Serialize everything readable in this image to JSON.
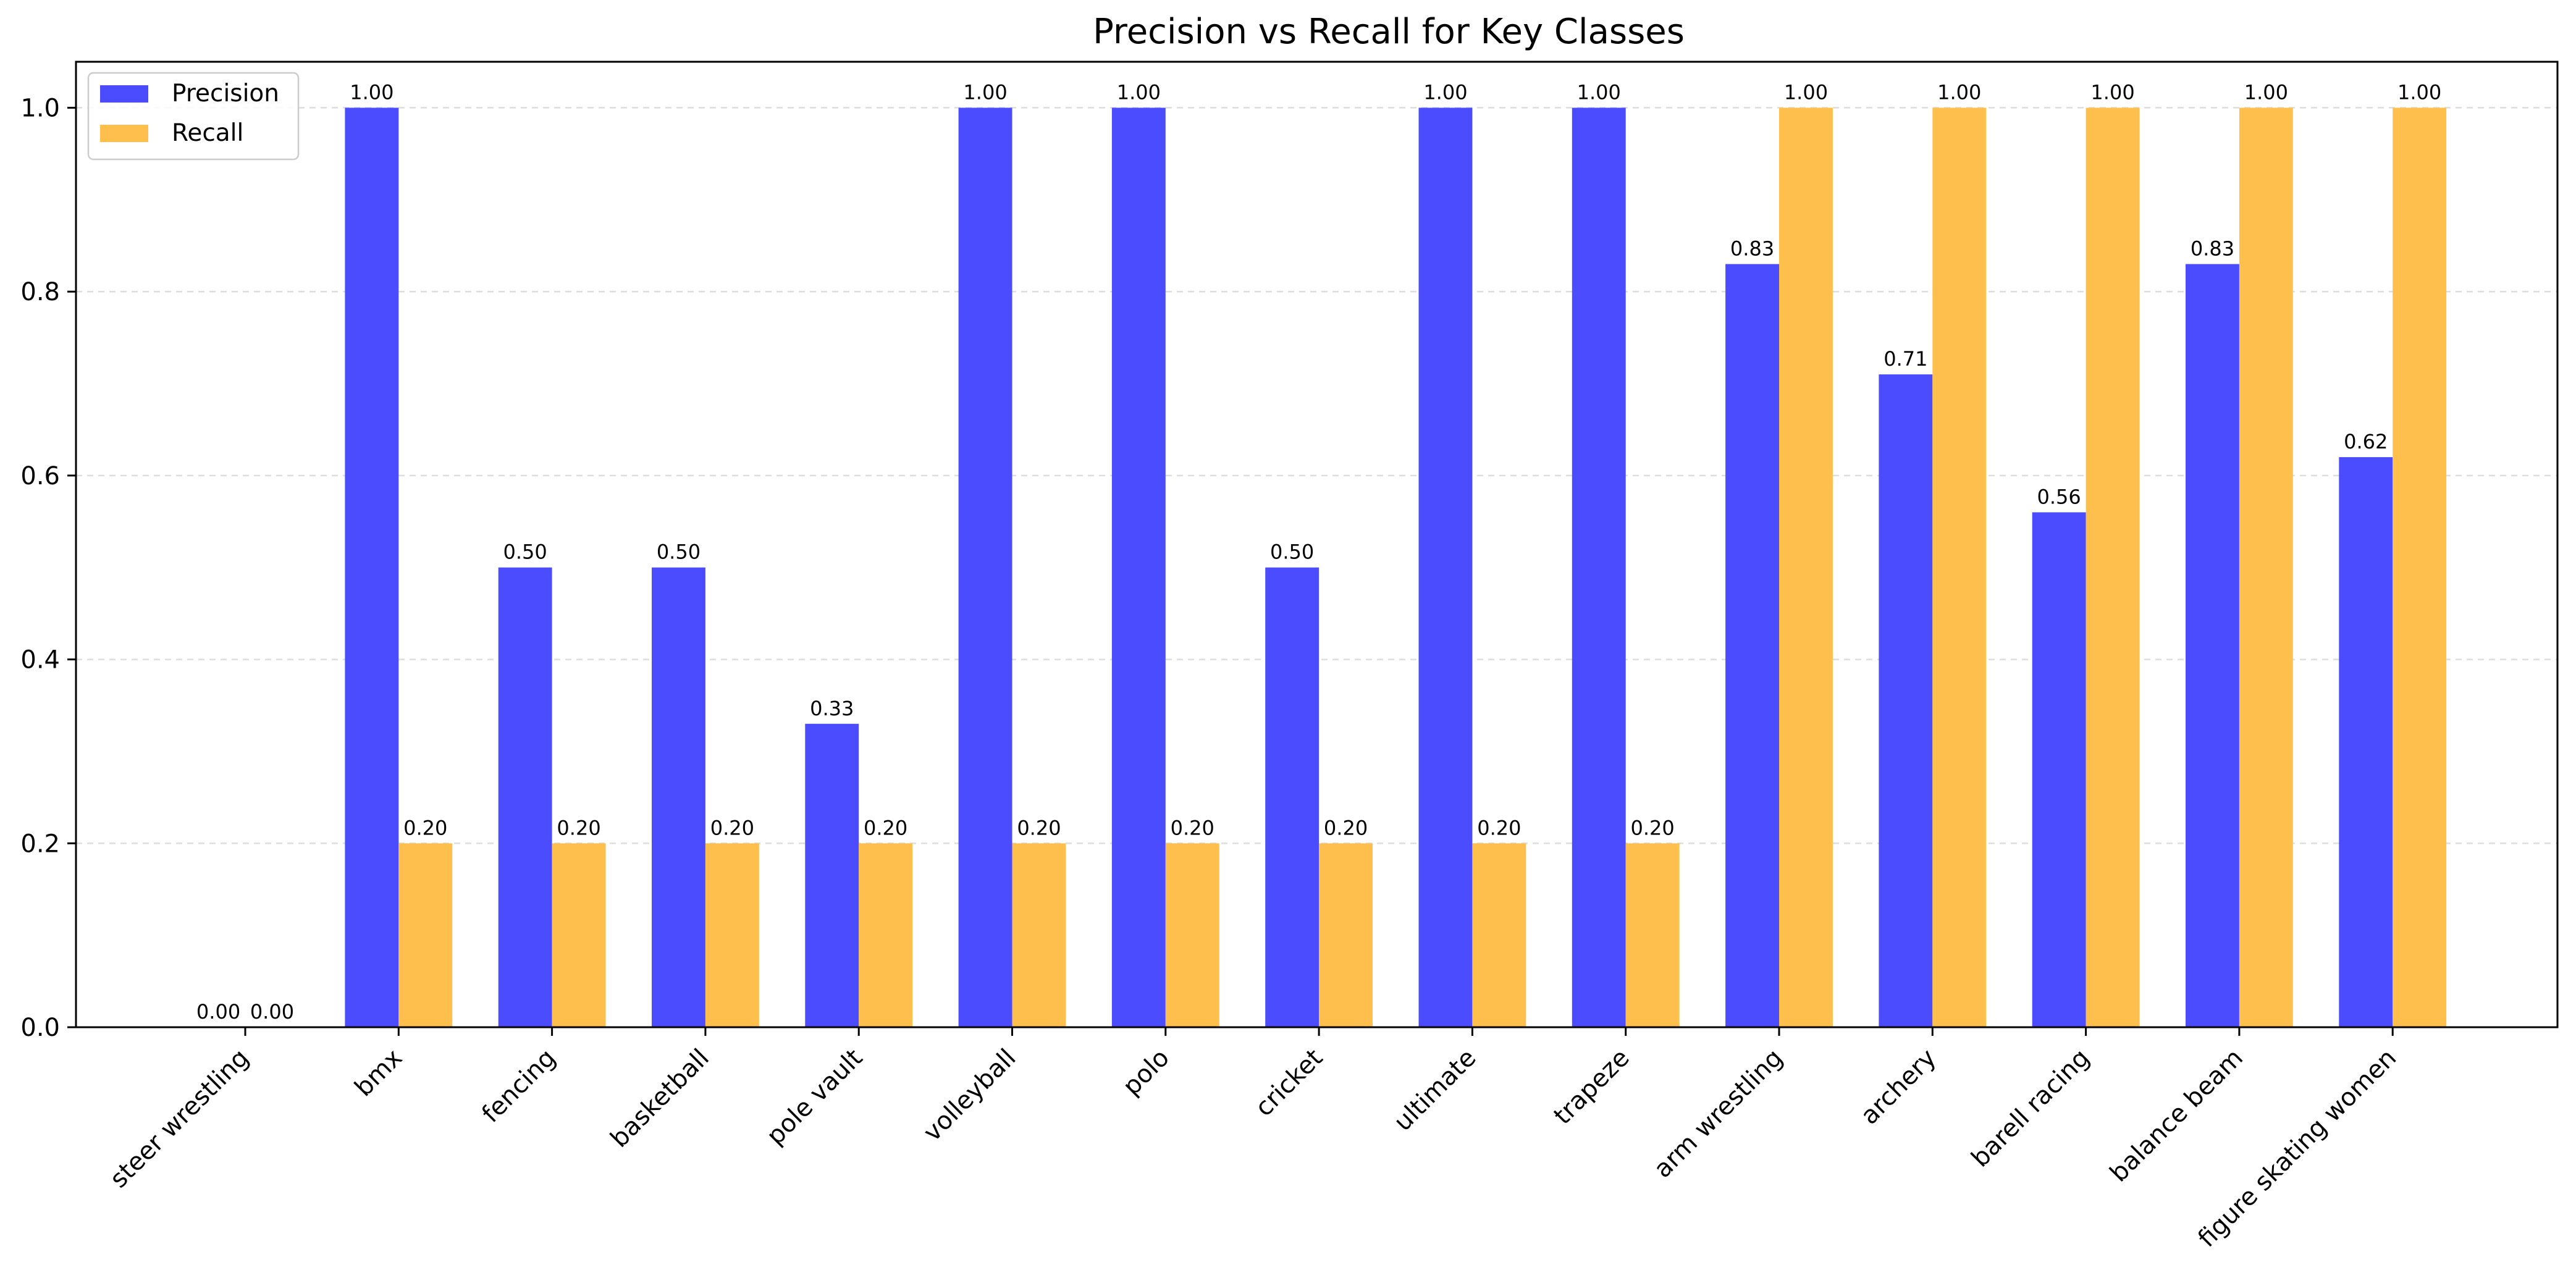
{
  "chart_data": {
    "type": "bar",
    "title": "Precision vs Recall for Key Classes",
    "xlabel": "",
    "ylabel": "",
    "categories": [
      "steer wrestling",
      "bmx",
      "fencing",
      "basketball",
      "pole vault",
      "volleyball",
      "polo",
      "cricket",
      "ultimate",
      "trapeze",
      "arm wrestling",
      "archery",
      "barell racing",
      "balance beam",
      "figure skating women"
    ],
    "series": [
      {
        "name": "Precision",
        "color": "#4c4cff",
        "values": [
          0.0,
          1.0,
          0.5,
          0.5,
          0.33,
          1.0,
          1.0,
          0.5,
          1.0,
          1.0,
          0.83,
          0.71,
          0.56,
          0.83,
          0.62
        ]
      },
      {
        "name": "Recall",
        "color": "#ffbf4c",
        "values": [
          0.0,
          0.2,
          0.2,
          0.2,
          0.2,
          0.2,
          0.2,
          0.2,
          0.2,
          0.2,
          1.0,
          1.0,
          1.0,
          1.0,
          1.0
        ]
      }
    ],
    "value_labels": [
      [
        "0.00",
        "1.00",
        "0.50",
        "0.50",
        "0.33",
        "1.00",
        "1.00",
        "0.50",
        "1.00",
        "1.00",
        "0.83",
        "0.71",
        "0.56",
        "0.83",
        "0.62"
      ],
      [
        "0.00",
        "0.20",
        "0.20",
        "0.20",
        "0.20",
        "0.20",
        "0.20",
        "0.20",
        "0.20",
        "0.20",
        "1.00",
        "1.00",
        "1.00",
        "1.00",
        "1.00"
      ]
    ],
    "ylim": [
      0,
      1.05
    ],
    "yticks": [
      "0.0",
      "0.2",
      "0.4",
      "0.6",
      "0.8",
      "1.0"
    ],
    "grid": "y-dashed",
    "legend_position": "top-left"
  }
}
